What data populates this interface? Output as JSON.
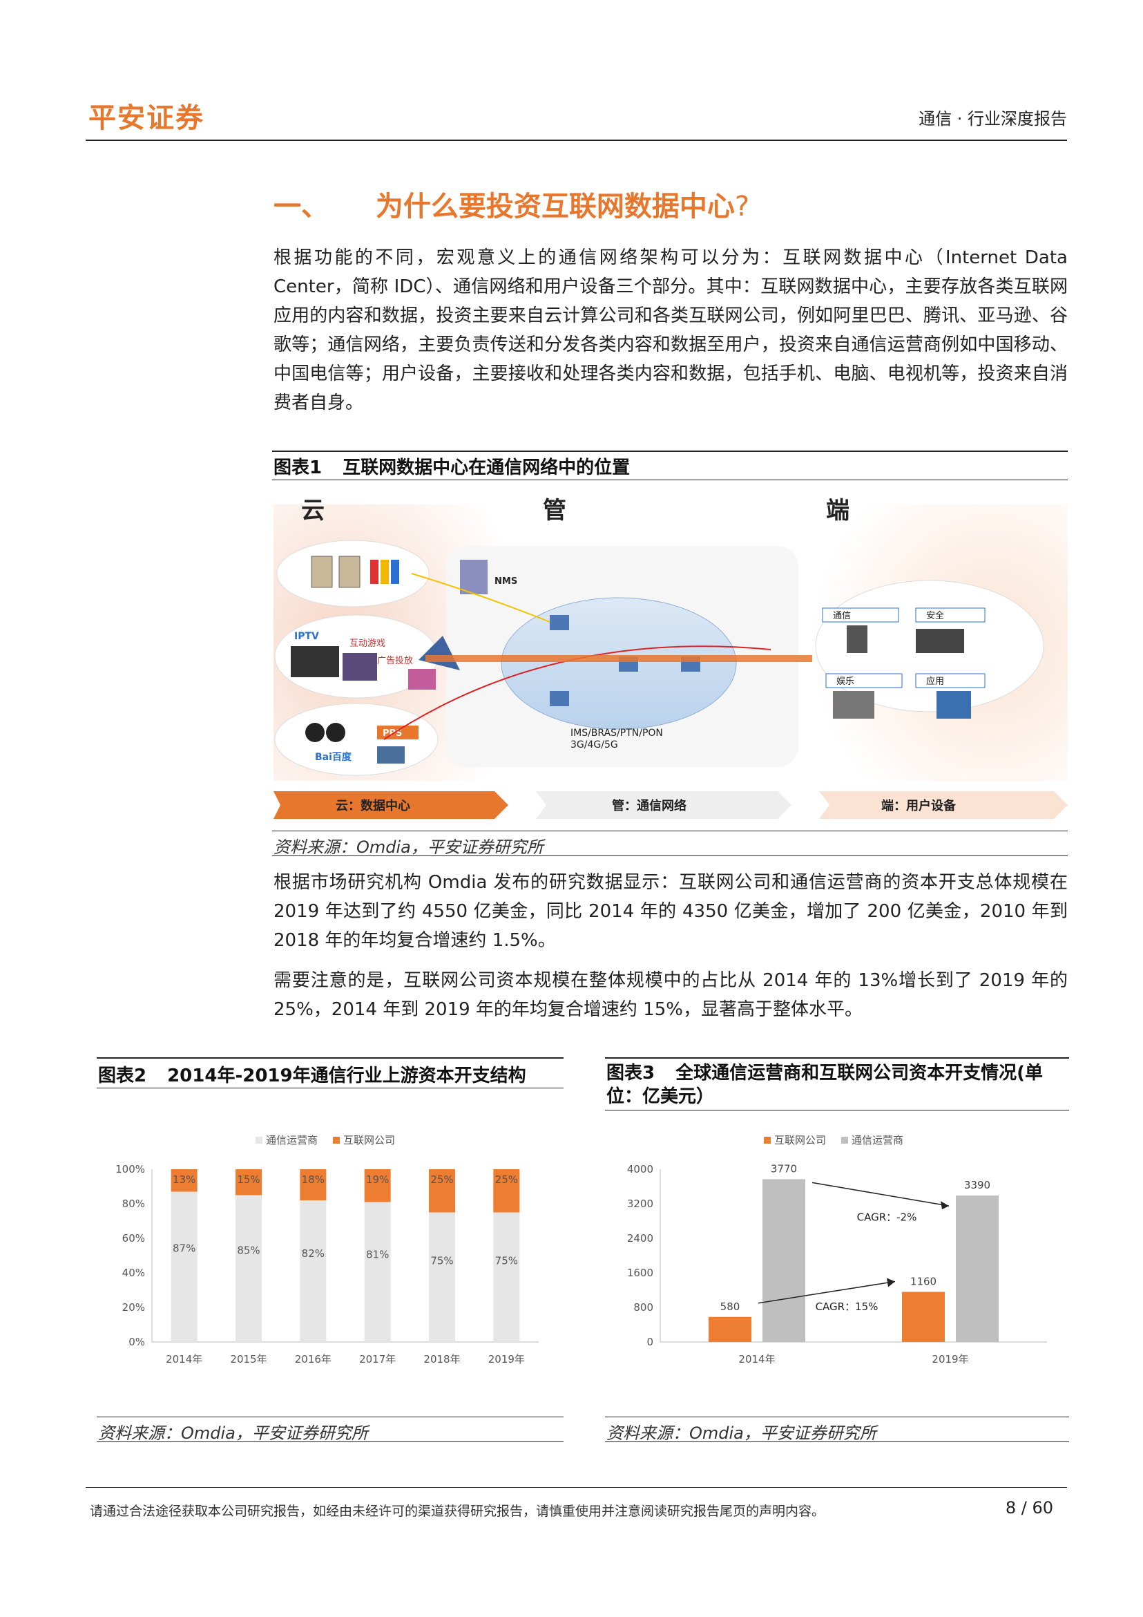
{
  "header": {
    "logo": "平安证券",
    "report_type": "通信 · 行业深度报告"
  },
  "section": {
    "number": "一、",
    "title": "为什么要投资互联网数据中心",
    "q": "?"
  },
  "paragraphs": [
    "根据功能的不同，宏观意义上的通信网络架构可以分为：互联网数据中心（Internet Data Center，简称 IDC）、通信网络和用户设备三个部分。其中：互联网数据中心，主要存放各类互联网应用的内容和数据，投资主要来自云计算公司和各类互联网公司，例如阿里巴巴、腾讯、亚马逊、谷歌等；通信网络，主要负责传送和分发各类内容和数据至用户，投资来自通信运营商例如中国移动、中国电信等；用户设备，主要接收和处理各类内容和数据，包括手机、电脑、电视机等，投资来自消费者自身。",
    "根据市场研究机构 Omdia 发布的研究数据显示：互联网公司和通信运营商的资本开支总体规模在 2019 年达到了约 4550 亿美金，同比 2014 年的 4350 亿美金，增加了 200 亿美金，2010 年到 2018 年的年均复合增速约 1.5%。",
    "需要注意的是，互联网公司资本规模在整体规模中的占比从 2014 年的 13%增长到了 2019 年的 25%，2014 年到 2019 年的年均复合增速约 15%，显著高于整体水平。"
  ],
  "fig1": {
    "num": "图表1",
    "title": "互联网数据中心在通信网络中的位置",
    "source": "资料来源：Omdia，平安证券研究所",
    "col_cloud": "云",
    "col_pipe": "管",
    "col_end": "端",
    "nms": "NMS",
    "iptv": "IPTV",
    "game": "互动游戏",
    "ad": "广告投放",
    "pps": "PPS",
    "baidu": "Bai百度",
    "net1": "IMS/BRAS/PTN/PON",
    "net2": "3G/4G/5G",
    "dev1": "通信",
    "dev2": "安全",
    "dev3": "娱乐",
    "dev4": "应用",
    "arrow1": "云：数据中心",
    "arrow2": "管：通信网络",
    "arrow3": "端：用户设备"
  },
  "fig2": {
    "num": "图表2",
    "title": "2014年-2019年通信行业上游资本开支结构",
    "source": "资料来源：Omdia，平安证券研究所"
  },
  "fig3": {
    "num": "图表3",
    "title": "全球通信运营商和互联网公司资本开支情况(单位：亿美元）",
    "source": "资料来源：Omdia，平安证券研究所"
  },
  "chart_data": [
    {
      "type": "bar",
      "stacked": true,
      "categories": [
        "2014年",
        "2015年",
        "2016年",
        "2017年",
        "2018年",
        "2019年"
      ],
      "series": [
        {
          "name": "通信运营商",
          "values": [
            87,
            85,
            82,
            81,
            75,
            75
          ],
          "color": "#e6e6e6"
        },
        {
          "name": "互联网公司",
          "values": [
            13,
            15,
            18,
            19,
            25,
            25
          ],
          "color": "#ed7d31"
        }
      ],
      "y_ticks": [
        "0%",
        "20%",
        "40%",
        "60%",
        "80%",
        "100%"
      ],
      "ylim": [
        0,
        100
      ],
      "legend": "top"
    },
    {
      "type": "bar",
      "categories": [
        "2014年",
        "2019年"
      ],
      "series": [
        {
          "name": "互联网公司",
          "values": [
            580,
            1160
          ],
          "color": "#ed7d31"
        },
        {
          "name": "通信运营商",
          "values": [
            3770,
            3390
          ],
          "color": "#bfbfbf"
        }
      ],
      "y_ticks": [
        "0",
        "800",
        "1600",
        "2400",
        "3200",
        "4000"
      ],
      "ylim": [
        0,
        4000
      ],
      "annotations": [
        "CAGR：-2%",
        "CAGR：15%"
      ],
      "legend": "top"
    }
  ],
  "footer": {
    "disclaimer": "请通过合法途径获取本公司研究报告，如经由未经许可的渠道获得研究报告，请慎重使用并注意阅读研究报告尾页的声明内容。",
    "page": "8 / 60"
  }
}
